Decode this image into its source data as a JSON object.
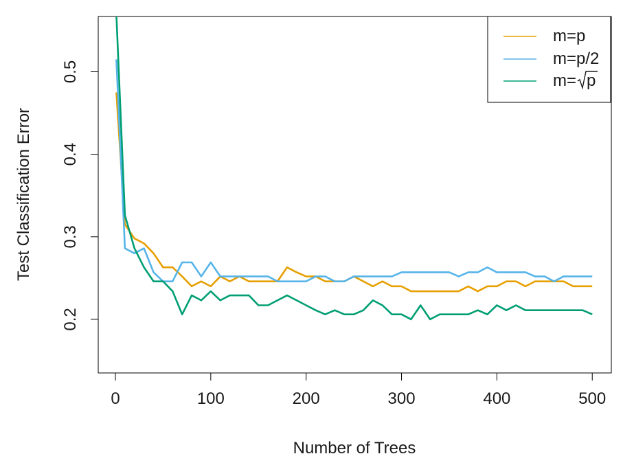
{
  "chart_data": {
    "type": "line",
    "title": "",
    "xlabel": "Number of Trees",
    "ylabel": "Test Classification Error",
    "xlim": [
      -18,
      520
    ],
    "ylim": [
      0.135,
      0.567
    ],
    "xticks": [
      0,
      100,
      200,
      300,
      400,
      500
    ],
    "yticks": [
      0.2,
      0.3,
      0.4,
      0.5
    ],
    "xtick_labels": [
      "0",
      "100",
      "200",
      "300",
      "400",
      "500"
    ],
    "ytick_labels": [
      "0.2",
      "0.3",
      "0.4",
      "0.5"
    ],
    "grid": false,
    "legend_position": "top-right",
    "x": [
      1,
      10,
      20,
      30,
      40,
      50,
      60,
      70,
      80,
      90,
      100,
      110,
      120,
      130,
      140,
      150,
      160,
      170,
      180,
      190,
      200,
      210,
      220,
      230,
      240,
      250,
      260,
      270,
      280,
      290,
      300,
      310,
      320,
      330,
      340,
      350,
      360,
      370,
      380,
      390,
      400,
      410,
      420,
      430,
      440,
      450,
      460,
      470,
      480,
      490,
      500
    ],
    "series": [
      {
        "name": "m=p",
        "color": "#E69F00",
        "values": [
          0.475,
          0.315,
          0.298,
          0.292,
          0.28,
          0.263,
          0.263,
          0.252,
          0.24,
          0.246,
          0.24,
          0.252,
          0.246,
          0.252,
          0.246,
          0.246,
          0.246,
          0.246,
          0.263,
          0.257,
          0.252,
          0.252,
          0.246,
          0.246,
          0.246,
          0.252,
          0.246,
          0.24,
          0.246,
          0.24,
          0.24,
          0.234,
          0.234,
          0.234,
          0.234,
          0.234,
          0.234,
          0.24,
          0.234,
          0.24,
          0.24,
          0.246,
          0.246,
          0.24,
          0.246,
          0.246,
          0.246,
          0.246,
          0.24,
          0.24,
          0.24
        ]
      },
      {
        "name": "m=p/2",
        "color": "#56B4E9",
        "values": [
          0.515,
          0.286,
          0.28,
          0.286,
          0.257,
          0.246,
          0.246,
          0.269,
          0.269,
          0.252,
          0.269,
          0.252,
          0.252,
          0.252,
          0.252,
          0.252,
          0.252,
          0.246,
          0.246,
          0.246,
          0.246,
          0.252,
          0.252,
          0.246,
          0.246,
          0.252,
          0.252,
          0.252,
          0.252,
          0.252,
          0.257,
          0.257,
          0.257,
          0.257,
          0.257,
          0.257,
          0.252,
          0.257,
          0.257,
          0.263,
          0.257,
          0.257,
          0.257,
          0.257,
          0.252,
          0.252,
          0.246,
          0.252,
          0.252,
          0.252,
          0.252
        ]
      },
      {
        "name": "m=",
        "name_radical": "p",
        "color": "#009E73",
        "values": [
          0.57,
          0.326,
          0.286,
          0.263,
          0.246,
          0.246,
          0.234,
          0.206,
          0.229,
          0.223,
          0.234,
          0.223,
          0.229,
          0.229,
          0.229,
          0.217,
          0.217,
          0.223,
          0.229,
          0.223,
          0.217,
          0.211,
          0.206,
          0.211,
          0.206,
          0.206,
          0.211,
          0.223,
          0.217,
          0.206,
          0.206,
          0.2,
          0.217,
          0.2,
          0.206,
          0.206,
          0.206,
          0.206,
          0.211,
          0.206,
          0.217,
          0.211,
          0.217,
          0.211,
          0.211,
          0.211,
          0.211,
          0.211,
          0.211,
          0.211,
          0.206
        ]
      }
    ]
  }
}
